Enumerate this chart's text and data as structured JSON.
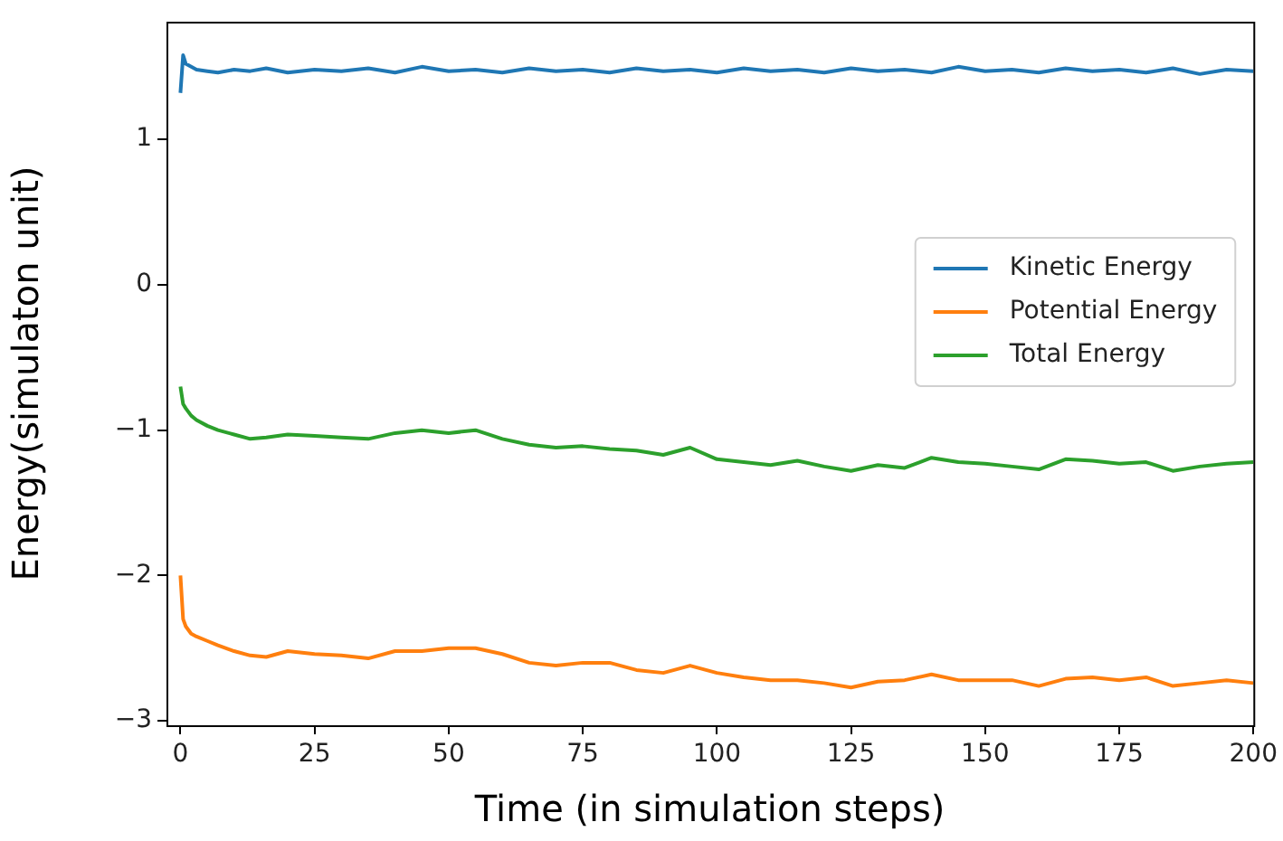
{
  "chart_data": {
    "type": "line",
    "xlabel": "Time (in simulation steps)",
    "ylabel": "Energy(simulaton unit)",
    "x": [
      0,
      0.5,
      1,
      2,
      3,
      5,
      7,
      10,
      13,
      16,
      20,
      25,
      30,
      35,
      40,
      45,
      50,
      55,
      60,
      65,
      70,
      75,
      80,
      85,
      90,
      95,
      100,
      105,
      110,
      115,
      120,
      125,
      130,
      135,
      140,
      145,
      150,
      155,
      160,
      165,
      170,
      175,
      180,
      185,
      190,
      195,
      200
    ],
    "series": [
      {
        "name": "Kinetic Energy",
        "color": "#1f77b4",
        "values": [
          1.32,
          1.58,
          1.52,
          1.5,
          1.48,
          1.47,
          1.46,
          1.48,
          1.47,
          1.49,
          1.46,
          1.48,
          1.47,
          1.49,
          1.46,
          1.5,
          1.47,
          1.48,
          1.46,
          1.49,
          1.47,
          1.48,
          1.46,
          1.49,
          1.47,
          1.48,
          1.46,
          1.49,
          1.47,
          1.48,
          1.46,
          1.49,
          1.47,
          1.48,
          1.46,
          1.5,
          1.47,
          1.48,
          1.46,
          1.49,
          1.47,
          1.48,
          1.46,
          1.49,
          1.45,
          1.48,
          1.47
        ]
      },
      {
        "name": "Potential Energy",
        "color": "#ff7f0e",
        "values": [
          -2.0,
          -2.3,
          -2.35,
          -2.4,
          -2.42,
          -2.45,
          -2.48,
          -2.52,
          -2.55,
          -2.56,
          -2.52,
          -2.54,
          -2.55,
          -2.57,
          -2.52,
          -2.52,
          -2.5,
          -2.5,
          -2.54,
          -2.6,
          -2.62,
          -2.6,
          -2.6,
          -2.65,
          -2.67,
          -2.62,
          -2.67,
          -2.7,
          -2.72,
          -2.72,
          -2.74,
          -2.77,
          -2.73,
          -2.72,
          -2.68,
          -2.72,
          -2.72,
          -2.72,
          -2.76,
          -2.71,
          -2.7,
          -2.72,
          -2.7,
          -2.76,
          -2.74,
          -2.72,
          -2.74
        ]
      },
      {
        "name": "Total Energy",
        "color": "#2ca02c",
        "values": [
          -0.7,
          -0.82,
          -0.85,
          -0.9,
          -0.93,
          -0.97,
          -1.0,
          -1.03,
          -1.06,
          -1.05,
          -1.03,
          -1.04,
          -1.05,
          -1.06,
          -1.02,
          -1.0,
          -1.02,
          -1.0,
          -1.06,
          -1.1,
          -1.12,
          -1.11,
          -1.13,
          -1.14,
          -1.17,
          -1.12,
          -1.2,
          -1.22,
          -1.24,
          -1.21,
          -1.25,
          -1.28,
          -1.24,
          -1.26,
          -1.19,
          -1.22,
          -1.23,
          -1.25,
          -1.27,
          -1.2,
          -1.21,
          -1.23,
          -1.22,
          -1.28,
          -1.25,
          -1.23,
          -1.22
        ]
      }
    ],
    "xlim": [
      -2.6,
      200
    ],
    "xticks": [
      0,
      25,
      50,
      75,
      100,
      125,
      150,
      175,
      200
    ],
    "ylim": [
      -3.03,
      1.81
    ],
    "yticks": [
      -3,
      -2,
      -1,
      0,
      1
    ],
    "grid": false,
    "legend": "right",
    "marker": "none",
    "line_style": "solid"
  }
}
